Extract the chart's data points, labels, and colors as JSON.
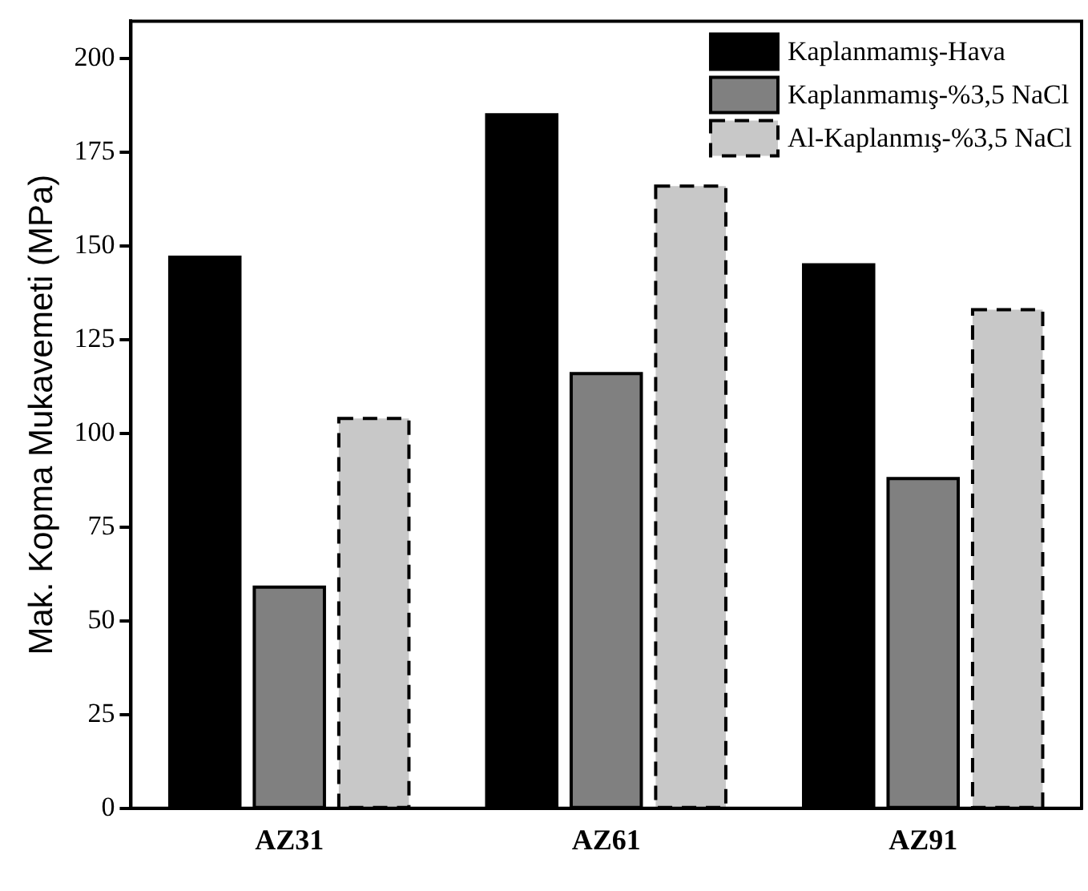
{
  "chart_data": {
    "type": "bar",
    "ylabel": "Mak. Kopma Mukavemeti (MPa)",
    "categories": [
      "AZ31",
      "AZ61",
      "AZ91"
    ],
    "series": [
      {
        "name": "Kaplanmamış-Hava",
        "color": "#000000",
        "values": [
          147,
          185,
          145
        ]
      },
      {
        "name": "Kaplanmamış-%3,5 NaCl",
        "color": "#808080",
        "values": [
          59,
          116,
          88
        ]
      },
      {
        "name": "Al-Kaplanmış-%3,5 NaCl",
        "color": "#c8c8c8",
        "values": [
          104,
          166,
          133
        ],
        "line_style": "dashed"
      }
    ],
    "ylim": [
      0,
      210
    ],
    "yticks": [
      0,
      25,
      50,
      75,
      100,
      125,
      150,
      175,
      200
    ],
    "grid": false,
    "legend": "top right"
  }
}
